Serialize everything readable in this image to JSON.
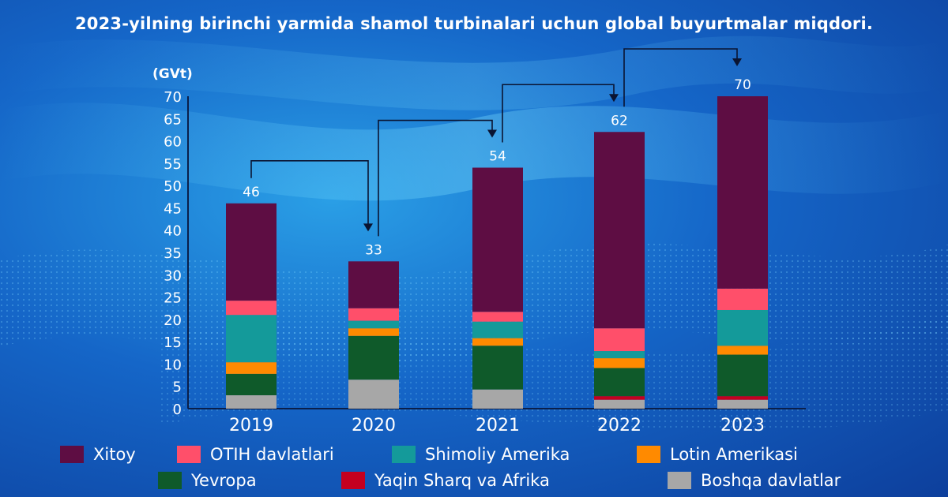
{
  "title": "2023-yilning birinchi yarmida shamol turbinalari uchun global buyurtmalar miqdori.",
  "unit_label": "(GVt)",
  "chart_data": {
    "type": "bar",
    "stacked": true,
    "title": "2023-yilning birinchi yarmida shamol turbinalari uchun global buyurtmalar miqdori.",
    "ylabel": "(GVt)",
    "ylim": [
      0,
      70
    ],
    "y_ticks": [
      0,
      5,
      10,
      15,
      20,
      25,
      30,
      35,
      40,
      45,
      50,
      55,
      60,
      65,
      70
    ],
    "categories": [
      "2019",
      "2020",
      "2021",
      "2022",
      "2023"
    ],
    "totals": [
      46,
      33,
      54,
      62,
      70
    ],
    "series": [
      {
        "name": "Boshqa davlatlar",
        "color": "#a7a7a7",
        "values": [
          3,
          6.5,
          4.3,
          2,
          2
        ]
      },
      {
        "name": "Yaqin Sharq va Afrika",
        "color": "#c4001f",
        "values": [
          0,
          0,
          0,
          0.8,
          0.8
        ]
      },
      {
        "name": "Yevropa",
        "color": "#0f5a2a",
        "values": [
          4.8,
          9.8,
          9.8,
          6.3,
          9.3
        ]
      },
      {
        "name": "Lotin Amerikasi",
        "color": "#ff8a00",
        "values": [
          2.6,
          1.7,
          1.7,
          2.2,
          2
        ]
      },
      {
        "name": "Shimoliy Amerika",
        "color": "#149a9a",
        "values": [
          10.6,
          1.7,
          3.7,
          1.6,
          8
        ]
      },
      {
        "name": "OTIH davlatlari",
        "color": "#ff4f6a",
        "values": [
          3.2,
          2.8,
          2.2,
          5.1,
          4.8
        ]
      },
      {
        "name": "Xitoy",
        "color": "#5e0d43",
        "values": [
          21.8,
          10.5,
          32.3,
          44,
          43.1
        ]
      }
    ],
    "grid": false,
    "legend_position": "bottom"
  },
  "legend": {
    "row1": [
      {
        "label": "Xitoy",
        "color": "#5e0d43"
      },
      {
        "label": "OTIH davlatlari",
        "color": "#ff4f6a"
      },
      {
        "label": "Shimoliy Amerika",
        "color": "#149a9a"
      },
      {
        "label": "Lotin Amerikasi",
        "color": "#ff8a00"
      }
    ],
    "row2": [
      {
        "label": "Yevropa",
        "color": "#0f5a2a"
      },
      {
        "label": "Yaqin Sharq va Afrika",
        "color": "#c4001f"
      },
      {
        "label": "Boshqa davlatlar",
        "color": "#a7a7a7"
      }
    ]
  }
}
